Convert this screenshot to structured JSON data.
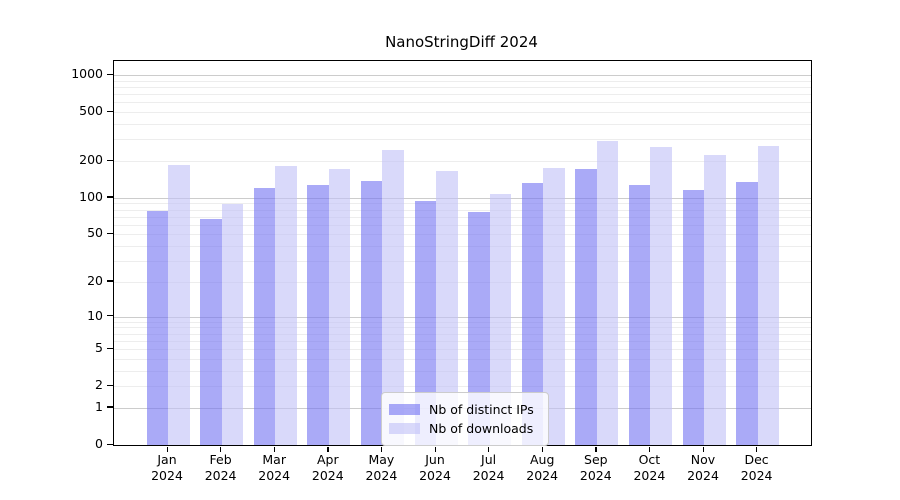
{
  "title": "NanoStringDiff 2024",
  "chart_data": {
    "type": "bar",
    "title": "NanoStringDiff 2024",
    "categories": [
      "Jan",
      "Feb",
      "Mar",
      "Apr",
      "May",
      "Jun",
      "Jul",
      "Aug",
      "Sep",
      "Oct",
      "Nov",
      "Dec"
    ],
    "year": "2024",
    "series": [
      {
        "name": "Nb of distinct IPs",
        "color": "rgba(113,113,242,0.6)",
        "approx_hex": "#aaaaf5",
        "values": [
          78,
          67,
          121,
          127,
          137,
          94,
          76,
          132,
          172,
          127,
          117,
          134
        ]
      },
      {
        "name": "Nb of downloads",
        "color": "rgba(192,192,247,0.6)",
        "approx_hex": "#d9d9fa",
        "values": [
          187,
          89,
          182,
          173,
          244,
          165,
          108,
          176,
          292,
          262,
          225,
          265
        ]
      }
    ],
    "y_scale": "log10(1+y)",
    "y_ticks": [
      1000,
      500,
      200,
      100,
      50,
      20,
      10,
      5,
      2,
      1,
      0
    ],
    "ylim": [
      0,
      1300
    ],
    "grid": true,
    "gridline_major_color": "#cccccc",
    "gridline_minor_color": "#ededed",
    "legend_position": "lower center"
  },
  "legend": {
    "items": [
      {
        "label": "Nb of distinct IPs"
      },
      {
        "label": "Nb of downloads"
      }
    ]
  }
}
